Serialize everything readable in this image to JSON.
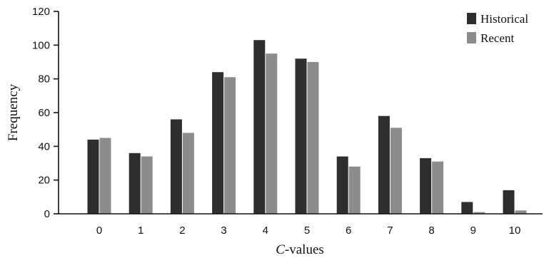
{
  "chart_data": {
    "type": "bar",
    "title": "",
    "xlabel_italic": "C",
    "xlabel_rest": "-values",
    "ylabel": "Frequency",
    "categories": [
      "0",
      "1",
      "2",
      "3",
      "4",
      "5",
      "6",
      "7",
      "8",
      "9",
      "10"
    ],
    "series": [
      {
        "name": "Historical",
        "color": "#2e2e2e",
        "values": [
          44,
          36,
          56,
          84,
          103,
          92,
          34,
          58,
          33,
          7,
          14
        ]
      },
      {
        "name": "Recent",
        "color": "#8c8c8c",
        "values": [
          45,
          34,
          48,
          81,
          95,
          90,
          28,
          51,
          31,
          1,
          2
        ]
      }
    ],
    "ylim": [
      0,
      120
    ],
    "yticks": [
      0,
      20,
      40,
      60,
      80,
      100,
      120
    ],
    "grid": false,
    "legend_position": "top-right"
  }
}
